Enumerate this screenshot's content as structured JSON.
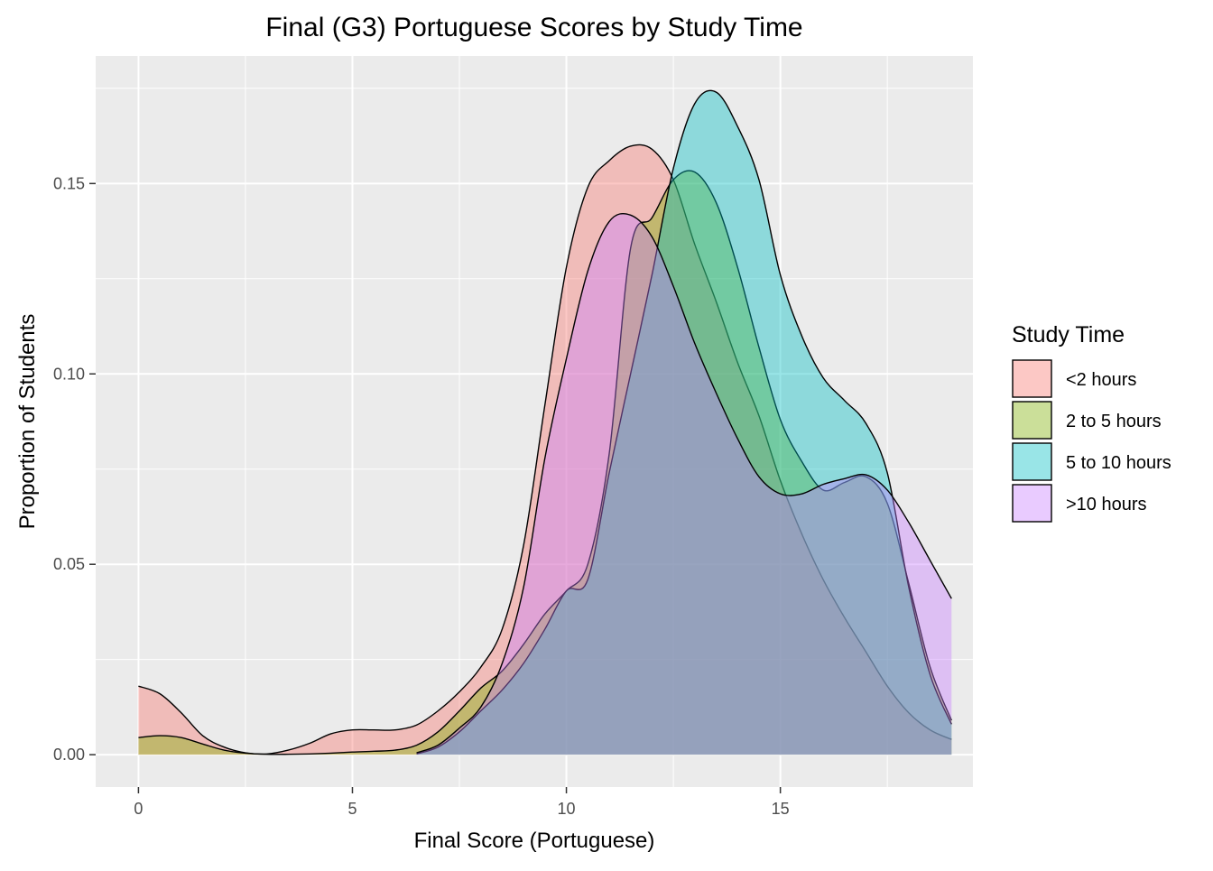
{
  "chart_data": {
    "type": "area",
    "title": "Final (G3) Portuguese Scores by Study Time",
    "xlabel": "Final Score (Portuguese)",
    "ylabel": "Proportion of Students",
    "xlim": [
      -1,
      19.5
    ],
    "ylim": [
      -0.0085,
      0.1835
    ],
    "x_ticks": [
      0,
      5,
      10,
      15
    ],
    "x_tick_labels": [
      "0",
      "5",
      "10",
      "15"
    ],
    "y_ticks": [
      0,
      0.05,
      0.1,
      0.15
    ],
    "y_tick_labels": [
      "0.00",
      "0.05",
      "0.10",
      "0.15"
    ],
    "grid": true,
    "legend": {
      "title": "Study Time",
      "position": "right"
    },
    "series": [
      {
        "name": "<2 hours",
        "color": "#F8766D",
        "points": [
          [
            0,
            0.018
          ],
          [
            0.5,
            0.016
          ],
          [
            1,
            0.011
          ],
          [
            1.5,
            0.005
          ],
          [
            2,
            0.002
          ],
          [
            2.5,
            0.0005
          ],
          [
            3,
            0.0002
          ],
          [
            3.5,
            0.0012
          ],
          [
            4,
            0.003
          ],
          [
            4.5,
            0.0055
          ],
          [
            5,
            0.0065
          ],
          [
            5.5,
            0.0065
          ],
          [
            6,
            0.0065
          ],
          [
            6.5,
            0.0078
          ],
          [
            7,
            0.0115
          ],
          [
            7.5,
            0.0165
          ],
          [
            8,
            0.023
          ],
          [
            8.5,
            0.033
          ],
          [
            9,
            0.055
          ],
          [
            9.5,
            0.092
          ],
          [
            10,
            0.128
          ],
          [
            10.5,
            0.149
          ],
          [
            11,
            0.156
          ],
          [
            11.5,
            0.1598
          ],
          [
            12,
            0.159
          ],
          [
            12.5,
            0.151
          ],
          [
            13,
            0.134
          ],
          [
            13.5,
            0.119
          ],
          [
            14,
            0.103
          ],
          [
            14.5,
            0.089
          ],
          [
            15,
            0.072
          ],
          [
            15.5,
            0.058
          ],
          [
            16,
            0.046
          ],
          [
            16.5,
            0.036
          ],
          [
            17,
            0.027
          ],
          [
            17.5,
            0.018
          ],
          [
            18,
            0.011
          ],
          [
            18.5,
            0.0065
          ],
          [
            19,
            0.004
          ]
        ]
      },
      {
        "name": "2 to 5 hours",
        "color": "#7CAE00",
        "points": [
          [
            0,
            0.0045
          ],
          [
            0.5,
            0.005
          ],
          [
            1,
            0.0045
          ],
          [
            1.5,
            0.0028
          ],
          [
            2,
            0.0012
          ],
          [
            2.5,
            0.0004
          ],
          [
            3,
            0.0001
          ],
          [
            3.5,
            0.0001
          ],
          [
            4,
            0.0002
          ],
          [
            4.5,
            0.0004
          ],
          [
            5,
            0.0007
          ],
          [
            5.5,
            0.0009
          ],
          [
            6,
            0.0012
          ],
          [
            6.5,
            0.0025
          ],
          [
            7,
            0.006
          ],
          [
            7.5,
            0.0115
          ],
          [
            8,
            0.0175
          ],
          [
            8.5,
            0.022
          ],
          [
            9,
            0.029
          ],
          [
            9.5,
            0.037
          ],
          [
            10,
            0.043
          ],
          [
            10.5,
            0.05
          ],
          [
            11,
            0.079
          ],
          [
            11.5,
            0.133
          ],
          [
            12,
            0.141
          ],
          [
            12.5,
            0.151
          ],
          [
            13,
            0.153
          ],
          [
            13.5,
            0.145
          ],
          [
            14,
            0.128
          ],
          [
            14.5,
            0.107
          ],
          [
            15,
            0.088
          ],
          [
            15.5,
            0.077
          ],
          [
            16,
            0.0695
          ],
          [
            16.5,
            0.0715
          ],
          [
            17,
            0.073
          ],
          [
            17.5,
            0.066
          ],
          [
            18,
            0.045
          ],
          [
            18.5,
            0.023
          ],
          [
            19,
            0.009
          ]
        ]
      },
      {
        "name": "5 to 10 hours",
        "color": "#00BFC4",
        "points": [
          [
            6.5,
            0.0002
          ],
          [
            7,
            0.002
          ],
          [
            7.5,
            0.006
          ],
          [
            8,
            0.0115
          ],
          [
            8.5,
            0.017
          ],
          [
            9,
            0.024
          ],
          [
            9.5,
            0.033
          ],
          [
            10,
            0.043
          ],
          [
            10.5,
            0.046
          ],
          [
            11,
            0.074
          ],
          [
            11.5,
            0.1
          ],
          [
            12,
            0.126
          ],
          [
            12.5,
            0.154
          ],
          [
            13,
            0.171
          ],
          [
            13.5,
            0.174
          ],
          [
            14,
            0.165
          ],
          [
            14.5,
            0.151
          ],
          [
            15,
            0.126
          ],
          [
            15.5,
            0.11
          ],
          [
            16,
            0.099
          ],
          [
            16.5,
            0.093
          ],
          [
            17,
            0.087
          ],
          [
            17.5,
            0.074
          ],
          [
            18,
            0.044
          ],
          [
            18.5,
            0.021
          ],
          [
            19,
            0.008
          ]
        ]
      },
      {
        "name": ">10 hours",
        "color": "#C77CFF",
        "points": [
          [
            6.5,
            0.0005
          ],
          [
            7,
            0.0025
          ],
          [
            7.5,
            0.007
          ],
          [
            8,
            0.0125
          ],
          [
            8.5,
            0.024
          ],
          [
            9,
            0.044
          ],
          [
            9.5,
            0.078
          ],
          [
            10,
            0.104
          ],
          [
            10.5,
            0.127
          ],
          [
            11,
            0.14
          ],
          [
            11.5,
            0.1417
          ],
          [
            12,
            0.136
          ],
          [
            12.5,
            0.123
          ],
          [
            13,
            0.108
          ],
          [
            13.5,
            0.095
          ],
          [
            14,
            0.083
          ],
          [
            14.5,
            0.073
          ],
          [
            15,
            0.0685
          ],
          [
            15.5,
            0.0685
          ],
          [
            16,
            0.071
          ],
          [
            16.5,
            0.0725
          ],
          [
            17,
            0.0735
          ],
          [
            17.5,
            0.0695
          ],
          [
            18,
            0.061
          ],
          [
            18.5,
            0.051
          ],
          [
            19,
            0.041
          ]
        ]
      }
    ]
  }
}
